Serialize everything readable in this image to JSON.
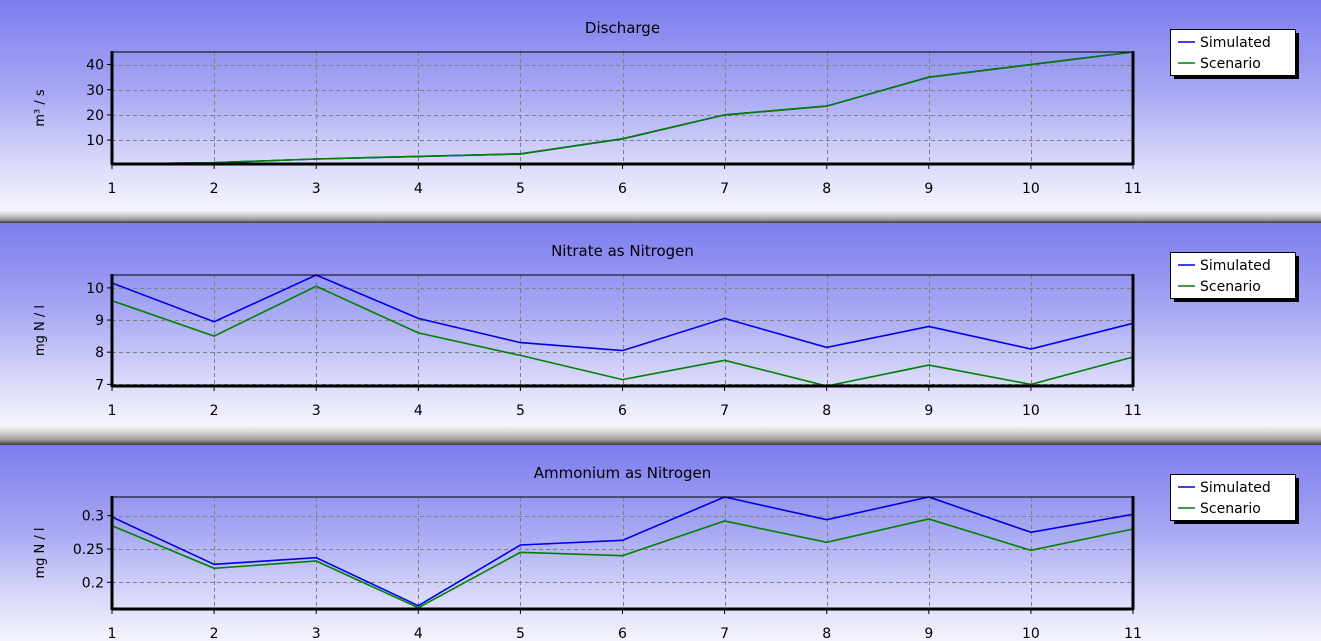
{
  "colors": {
    "simulated": "#0000e8",
    "scenario": "#008000",
    "grid": "#808080",
    "axis": "#000000"
  },
  "legend": {
    "placement": "top-right",
    "entries": [
      "Simulated",
      "Scenario"
    ]
  },
  "chart_data": [
    {
      "type": "line",
      "title": "Discharge",
      "xlabel": "",
      "ylabel": "m³ / s",
      "x": [
        1,
        2,
        3,
        4,
        5,
        6,
        7,
        8,
        9,
        10,
        11
      ],
      "xlim": [
        1,
        11
      ],
      "ylim": [
        0.5,
        45
      ],
      "yticks": [
        10,
        20,
        30,
        40
      ],
      "ytick_labels": [
        "10",
        "20",
        "30",
        "40"
      ],
      "grid": true,
      "series": [
        {
          "name": "Simulated",
          "values": [
            0.5,
            1,
            2.5,
            3.5,
            4.5,
            10.5,
            20,
            23.5,
            35,
            40,
            45
          ]
        },
        {
          "name": "Scenario",
          "values": [
            0.5,
            1,
            2.5,
            3.5,
            4.5,
            10.5,
            20,
            23.5,
            35,
            40,
            45
          ]
        }
      ]
    },
    {
      "type": "line",
      "title": "Nitrate as Nitrogen",
      "xlabel": "",
      "ylabel": "mg N / l",
      "x": [
        1,
        2,
        3,
        4,
        5,
        6,
        7,
        8,
        9,
        10,
        11
      ],
      "xlim": [
        1,
        11
      ],
      "ylim": [
        6.95,
        10.4
      ],
      "yticks": [
        7,
        8,
        9,
        10
      ],
      "ytick_labels": [
        "7",
        "8",
        "9",
        "10"
      ],
      "grid": true,
      "series": [
        {
          "name": "Simulated",
          "values": [
            10.15,
            8.95,
            10.4,
            9.05,
            8.3,
            8.05,
            9.05,
            8.15,
            8.8,
            8.1,
            8.9
          ]
        },
        {
          "name": "Scenario",
          "values": [
            9.6,
            8.5,
            10.05,
            8.6,
            7.9,
            7.15,
            7.75,
            6.95,
            7.6,
            7.0,
            7.85
          ]
        }
      ]
    },
    {
      "type": "line",
      "title": "Ammonium as Nitrogen",
      "xlabel": "",
      "ylabel": "mg N / l",
      "x": [
        1,
        2,
        3,
        4,
        5,
        6,
        7,
        8,
        9,
        10,
        11
      ],
      "xlim": [
        1,
        11
      ],
      "ylim": [
        0.16,
        0.328
      ],
      "yticks": [
        0.2,
        0.25,
        0.3
      ],
      "ytick_labels": [
        "0.2",
        "0.25",
        "0.3"
      ],
      "grid": true,
      "series": [
        {
          "name": "Simulated",
          "values": [
            0.298,
            0.227,
            0.237,
            0.165,
            0.256,
            0.263,
            0.328,
            0.294,
            0.328,
            0.275,
            0.302
          ]
        },
        {
          "name": "Scenario",
          "values": [
            0.285,
            0.221,
            0.232,
            0.162,
            0.245,
            0.24,
            0.292,
            0.26,
            0.295,
            0.248,
            0.28
          ]
        }
      ]
    }
  ]
}
